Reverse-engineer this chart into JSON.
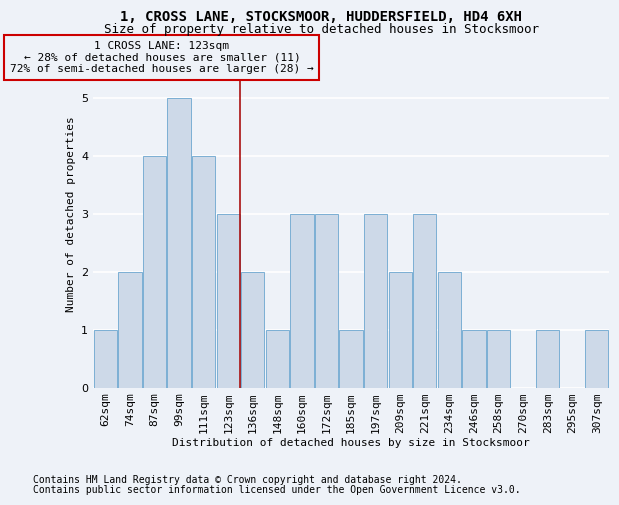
{
  "title1": "1, CROSS LANE, STOCKSMOOR, HUDDERSFIELD, HD4 6XH",
  "title2": "Size of property relative to detached houses in Stocksmoor",
  "xlabel": "Distribution of detached houses by size in Stocksmoor",
  "ylabel": "Number of detached properties",
  "footnote1": "Contains HM Land Registry data © Crown copyright and database right 2024.",
  "footnote2": "Contains public sector information licensed under the Open Government Licence v3.0.",
  "annotation_line1": "1 CROSS LANE: 123sqm",
  "annotation_line2": "← 28% of detached houses are smaller (11)",
  "annotation_line3": "72% of semi-detached houses are larger (28) →",
  "categories": [
    "62sqm",
    "74sqm",
    "87sqm",
    "99sqm",
    "111sqm",
    "123sqm",
    "136sqm",
    "148sqm",
    "160sqm",
    "172sqm",
    "185sqm",
    "197sqm",
    "209sqm",
    "221sqm",
    "234sqm",
    "246sqm",
    "258sqm",
    "270sqm",
    "283sqm",
    "295sqm",
    "307sqm"
  ],
  "values": [
    1,
    2,
    4,
    5,
    4,
    3,
    2,
    1,
    3,
    3,
    1,
    3,
    2,
    3,
    2,
    1,
    1,
    0,
    1,
    0,
    1
  ],
  "highlight_index": 5,
  "bar_color": "#cdd9e8",
  "bar_edge_color": "#7bafd4",
  "highlight_bar_edge_color": "#aa1111",
  "annotation_box_edge_color": "#cc0000",
  "background_color": "#eef2f8",
  "ylim": [
    0,
    6
  ],
  "yticks": [
    0,
    1,
    2,
    3,
    4,
    5,
    6
  ],
  "grid_color": "#ffffff",
  "title1_fontsize": 10,
  "title2_fontsize": 9,
  "axis_fontsize": 8,
  "annotation_fontsize": 8,
  "footnote_fontsize": 7
}
